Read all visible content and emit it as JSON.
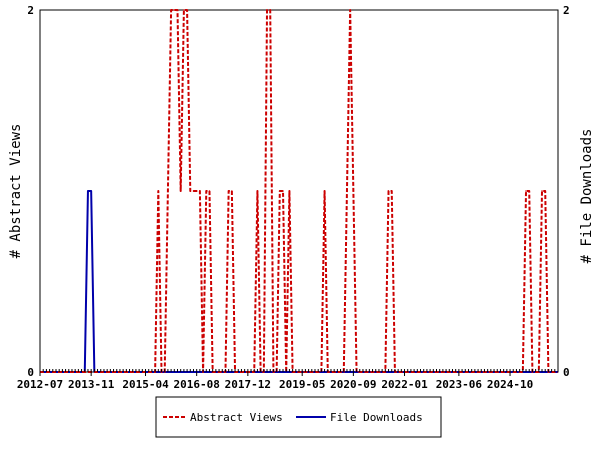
{
  "chart_data": {
    "type": "line",
    "title": "",
    "ylabel_left": "# Abstract Views",
    "ylabel_right": "# File Downloads",
    "x_range": [
      "2012-07",
      "2026-01"
    ],
    "ylim": [
      0,
      2
    ],
    "y_ticks": [
      "0",
      "2"
    ],
    "x_ticks": [
      "2012-07",
      "2013-11",
      "2015-04",
      "2016-08",
      "2017-12",
      "2019-05",
      "2020-09",
      "2022-01",
      "2023-06",
      "2024-10"
    ],
    "legend_position": "bottom",
    "grid": false,
    "series": [
      {
        "name": "Abstract Views",
        "color": "#cc0000",
        "style": "dashed",
        "axis": "left",
        "points": [
          {
            "x": "2015-08",
            "y": 1
          },
          {
            "x": "2015-11",
            "y": 1
          },
          {
            "x": "2015-12",
            "y": 2
          },
          {
            "x": "2016-01",
            "y": 2
          },
          {
            "x": "2016-02",
            "y": 2
          },
          {
            "x": "2016-03",
            "y": 1
          },
          {
            "x": "2016-04",
            "y": 2
          },
          {
            "x": "2016-05",
            "y": 2
          },
          {
            "x": "2016-06",
            "y": 1
          },
          {
            "x": "2016-07",
            "y": 1
          },
          {
            "x": "2016-08",
            "y": 1
          },
          {
            "x": "2016-09",
            "y": 1
          },
          {
            "x": "2016-11",
            "y": 1
          },
          {
            "x": "2016-12",
            "y": 1
          },
          {
            "x": "2017-06",
            "y": 1
          },
          {
            "x": "2017-07",
            "y": 1
          },
          {
            "x": "2018-03",
            "y": 1
          },
          {
            "x": "2018-06",
            "y": 2
          },
          {
            "x": "2018-07",
            "y": 2
          },
          {
            "x": "2018-10",
            "y": 1
          },
          {
            "x": "2018-11",
            "y": 1
          },
          {
            "x": "2019-01",
            "y": 1
          },
          {
            "x": "2019-12",
            "y": 1
          },
          {
            "x": "2020-07",
            "y": 1
          },
          {
            "x": "2020-08",
            "y": 2
          },
          {
            "x": "2020-09",
            "y": 1
          },
          {
            "x": "2021-08",
            "y": 1
          },
          {
            "x": "2021-09",
            "y": 1
          },
          {
            "x": "2025-03",
            "y": 1
          },
          {
            "x": "2025-04",
            "y": 1
          },
          {
            "x": "2025-08",
            "y": 1
          },
          {
            "x": "2025-09",
            "y": 1
          }
        ]
      },
      {
        "name": "File Downloads",
        "color": "#0000aa",
        "style": "solid",
        "axis": "right",
        "points": [
          {
            "x": "2013-10",
            "y": 1
          },
          {
            "x": "2013-11",
            "y": 1
          }
        ]
      }
    ]
  }
}
